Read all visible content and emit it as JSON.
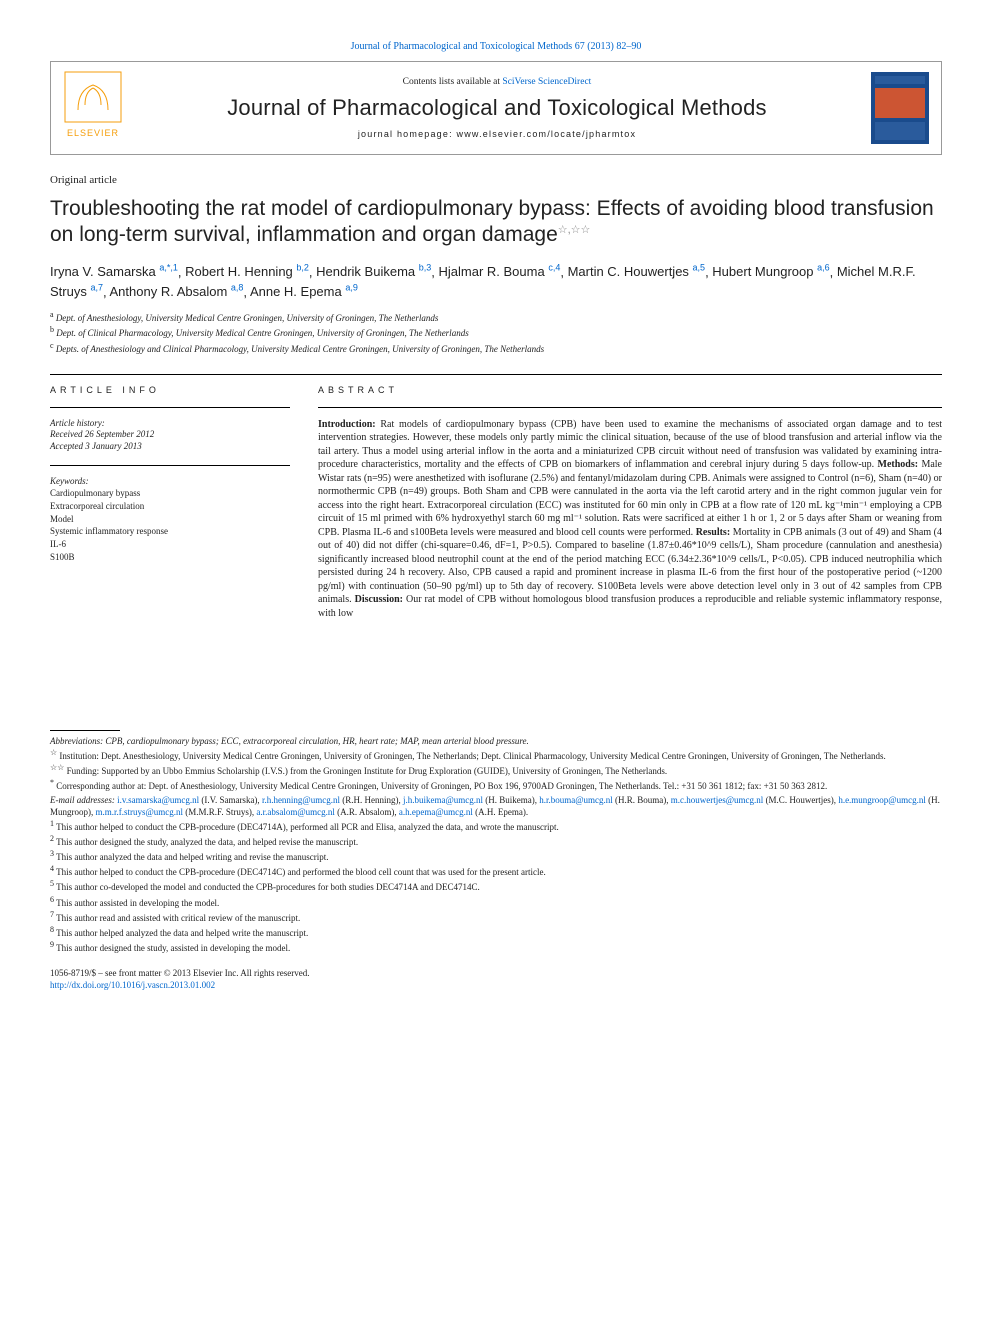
{
  "header": {
    "link_text": "Journal of Pharmacological and Toxicological Methods 67 (2013) 82–90",
    "contents_line_prefix": "Contents lists available at ",
    "contents_line_link": "SciVerse ScienceDirect",
    "journal_name": "Journal of Pharmacological and Toxicological Methods",
    "homepage_prefix": "journal homepage: ",
    "homepage_url": "www.elsevier.com/locate/jpharmtox"
  },
  "article_type": "Original article",
  "title": "Troubleshooting the rat model of cardiopulmonary bypass: Effects of avoiding blood transfusion on long-term survival, inflammation and organ damage",
  "title_stars": "☆,☆☆",
  "authors": [
    {
      "name": "Iryna V. Samarska",
      "sup": "a,*,1"
    },
    {
      "name": "Robert H. Henning",
      "sup": "b,2"
    },
    {
      "name": "Hendrik Buikema",
      "sup": "b,3"
    },
    {
      "name": "Hjalmar R. Bouma",
      "sup": "c,4"
    },
    {
      "name": "Martin C. Houwertjes",
      "sup": "a,5"
    },
    {
      "name": "Hubert Mungroop",
      "sup": "a,6"
    },
    {
      "name": "Michel M.R.F. Struys",
      "sup": "a,7"
    },
    {
      "name": "Anthony R. Absalom",
      "sup": "a,8"
    },
    {
      "name": "Anne H. Epema",
      "sup": "a,9"
    }
  ],
  "affiliations": [
    {
      "sup": "a",
      "text": "Dept. of Anesthesiology, University Medical Centre Groningen, University of Groningen, The Netherlands"
    },
    {
      "sup": "b",
      "text": "Dept. of Clinical Pharmacology, University Medical Centre Groningen, University of Groningen, The Netherlands"
    },
    {
      "sup": "c",
      "text": "Depts. of Anesthesiology and Clinical Pharmacology, University Medical Centre Groningen, University of Groningen, The Netherlands"
    }
  ],
  "article_info": {
    "heading": "ARTICLE INFO",
    "history_label": "Article history:",
    "received": "Received 26 September 2012",
    "accepted": "Accepted 3 January 2013",
    "keywords_label": "Keywords:",
    "keywords": [
      "Cardiopulmonary bypass",
      "Extracorporeal circulation",
      "Model",
      "Systemic inflammatory response",
      "IL-6",
      "S100B"
    ]
  },
  "abstract": {
    "heading": "ABSTRACT",
    "body_html": "<b>Introduction:</b> Rat models of cardiopulmonary bypass (CPB) have been used to examine the mechanisms of associated organ damage and to test intervention strategies. However, these models only partly mimic the clinical situation, because of the use of blood transfusion and arterial inflow via the tail artery. Thus a model using arterial inflow in the aorta and a miniaturized CPB circuit without need of transfusion was validated by examining intra-procedure characteristics, mortality and the effects of CPB on biomarkers of inflammation and cerebral injury during 5 days follow-up. <b>Methods:</b> Male Wistar rats (n=95) were anesthetized with isoflurane (2.5%) and fentanyl/midazolam during CPB. Animals were assigned to Control (n=6), Sham (n=40) or normothermic CPB (n=49) groups. Both Sham and CPB were cannulated in the aorta via the left carotid artery and in the right common jugular vein for access into the right heart. Extracorporeal circulation (ECC) was instituted for 60 min only in CPB at a flow rate of 120 mL kg⁻¹min⁻¹ employing a CPB circuit of 15 ml primed with 6% hydroxyethyl starch 60 mg ml⁻¹ solution. Rats were sacrificed at either 1 h or 1, 2 or 5 days after Sham or weaning from CPB. Plasma IL-6 and s100Beta levels were measured and blood cell counts were performed. <b>Results:</b> Mortality in CPB animals (3 out of 49) and Sham (4 out of 40) did not differ (chi-square=0.46, dF=1, P>0.5). Compared to baseline (1.87±0.46*10^9 cells/L), Sham procedure (cannulation and anesthesia) significantly increased blood neutrophil count at the end of the period matching ECC (6.34±2.36*10^9 cells/L, P<0.05). CPB induced neutrophilia which persisted during 24 h recovery. Also, CPB caused a rapid and prominent increase in plasma IL-6 from the first hour of the postoperative period (~1200 pg/ml) with continuation (50–90 pg/ml) up to 5th day of recovery. S100Beta levels were above detection level only in 3 out of 42 samples from CPB animals. <b>Discussion:</b> Our rat model of CPB without homologous blood transfusion produces a reproducible and reliable systemic inflammatory response, with low"
  },
  "footnotes": {
    "abbrev": "Abbreviations: CPB, cardiopulmonary bypass; ECC, extracorporeal circulation, HR, heart rate; MAP, mean arterial blood pressure.",
    "star1": "Institution: Dept. Anesthesiology, University Medical Centre Groningen, University of Groningen, The Netherlands; Dept. Clinical Pharmacology, University Medical Centre Groningen, University of Groningen, The Netherlands.",
    "star2": "Funding: Supported by an Ubbo Emmius Scholarship (I.V.S.) from the Groningen Institute for Drug Exploration (GUIDE), University of Groningen, The Netherlands.",
    "corr": "Corresponding author at: Dept. of Anesthesiology, University Medical Centre Groningen, University of Groningen, PO Box 196, 9700AD Groningen, The Netherlands. Tel.: +31 50 361 1812; fax: +31 50 363 2812.",
    "emails_label": "E-mail addresses:",
    "emails": [
      {
        "addr": "i.v.samarska@umcg.nl",
        "who": "(I.V. Samarska)"
      },
      {
        "addr": "r.h.henning@umcg.nl",
        "who": "(R.H. Henning)"
      },
      {
        "addr": "j.h.buikema@umcg.nl",
        "who": "(H. Buikema)"
      },
      {
        "addr": "h.r.bouma@umcg.nl",
        "who": "(H.R. Bouma)"
      },
      {
        "addr": "m.c.houwertjes@umcg.nl",
        "who": "(M.C. Houwertjes)"
      },
      {
        "addr": "h.e.mungroop@umcg.nl",
        "who": "(H. Mungroop)"
      },
      {
        "addr": "m.m.r.f.struys@umcg.nl",
        "who": "(M.M.R.F. Struys)"
      },
      {
        "addr": "a.r.absalom@umcg.nl",
        "who": "(A.R. Absalom)"
      },
      {
        "addr": "a.h.epema@umcg.nl",
        "who": "(A.H. Epema)"
      }
    ],
    "notes": [
      {
        "n": "1",
        "text": "This author helped to conduct the CPB-procedure (DEC4714A), performed all PCR and Elisa, analyzed the data, and wrote the manuscript."
      },
      {
        "n": "2",
        "text": "This author designed the study, analyzed the data, and helped revise the manuscript."
      },
      {
        "n": "3",
        "text": "This author analyzed the data and helped writing and revise the manuscript."
      },
      {
        "n": "4",
        "text": "This author helped to conduct the CPB-procedure (DEC4714C) and performed the blood cell count that was used for the present article."
      },
      {
        "n": "5",
        "text": "This author co-developed the model and conducted the CPB-procedures for both studies DEC4714A and DEC4714C."
      },
      {
        "n": "6",
        "text": "This author assisted in developing the model."
      },
      {
        "n": "7",
        "text": "This author read and assisted with critical review of the manuscript."
      },
      {
        "n": "8",
        "text": "This author helped analyzed the data and helped write the manuscript."
      },
      {
        "n": "9",
        "text": "This author designed the study, assisted in developing the model."
      }
    ]
  },
  "bottom": {
    "copyright": "1056-8719/$ – see front matter © 2013 Elsevier Inc. All rights reserved.",
    "doi": "http://dx.doi.org/10.1016/j.vascn.2013.01.002"
  },
  "colors": {
    "link": "#0066cc",
    "text": "#222222",
    "border": "#999999"
  }
}
